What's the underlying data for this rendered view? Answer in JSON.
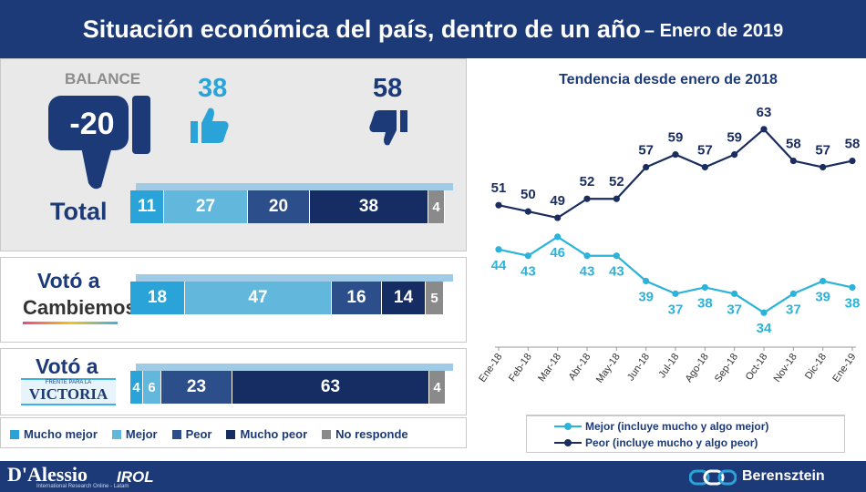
{
  "header": {
    "title": "Situación económica del país, dentro de un año",
    "subtitle": "– Enero de 2019"
  },
  "balance": {
    "label": "BALANCE",
    "value": "-20",
    "positive": "38",
    "negative": "58"
  },
  "bars": [
    {
      "label": "Total",
      "values": [
        "11",
        "27",
        "20",
        "38",
        "4"
      ]
    },
    {
      "label_top": "Votó a",
      "label_logo": "Cambiemos",
      "values": [
        "18",
        "47",
        "16",
        "14",
        "5"
      ]
    },
    {
      "label_top": "Votó a",
      "label_logo_small": "FRENTE PARA LA",
      "label_logo": "VICTORIA",
      "values": [
        "4",
        "6",
        "23",
        "63",
        "4"
      ]
    }
  ],
  "legend": [
    "Mucho mejor",
    "Mejor",
    "Peor",
    "Mucho peor",
    "No responde"
  ],
  "colors": {
    "mucho_mejor": "#2aa3d8",
    "mejor": "#62b8dc",
    "peor": "#2c4f8c",
    "mucho_peor": "#162d63",
    "no_responde": "#8a8a8a",
    "header": "#1c3a78",
    "line_mejor": "#2bb3d9",
    "line_peor": "#1a2d5e"
  },
  "chart_data": {
    "type": "line",
    "title": "Tendencia desde enero de 2018",
    "categories": [
      "Ene-18",
      "Feb-18",
      "Mar-18",
      "Abr-18",
      "May-18",
      "Jun-18",
      "Jul-18",
      "Ago-18",
      "Sep-18",
      "Oct-18",
      "Nov-18",
      "Dic-18",
      "Ene-19"
    ],
    "series": [
      {
        "name": "Mejor (incluye mucho y algo mejor)",
        "values": [
          44,
          43,
          46,
          43,
          43,
          39,
          37,
          38,
          37,
          34,
          37,
          39,
          38
        ]
      },
      {
        "name": "Peor (incluye mucho y algo peor)",
        "values": [
          51,
          50,
          49,
          52,
          52,
          57,
          59,
          57,
          59,
          63,
          58,
          57,
          58
        ]
      }
    ],
    "ylim": [
      30,
      66
    ]
  },
  "footer": {
    "left_brand": "D'Alessio",
    "left_brand2": "IROL",
    "left_sub": "International Research Online - Latam",
    "right_brand": "Berensztein"
  }
}
